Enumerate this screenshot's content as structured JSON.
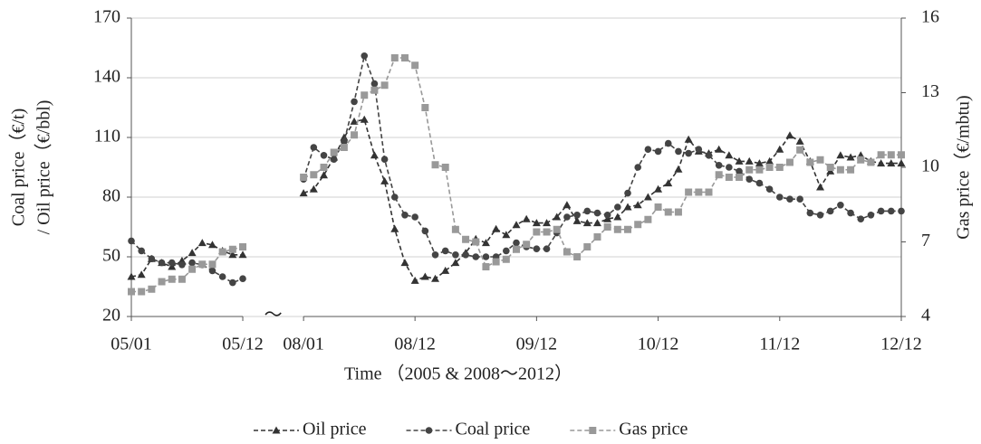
{
  "chart_data": {
    "type": "line",
    "y_label_lines": [
      "Coal price（€/t)",
      "/ Oil price（€/bbl)"
    ],
    "y2_label": "Gas price（€/mbtu)",
    "x_label": "Time （2005 & 2008～2012）",
    "break_label": "～",
    "categories": [
      "05/01",
      null,
      null,
      null,
      null,
      null,
      null,
      null,
      null,
      null,
      null,
      "05/12",
      null,
      null,
      null,
      null,
      null,
      "08/01",
      null,
      null,
      null,
      null,
      null,
      null,
      null,
      null,
      null,
      null,
      "08/12",
      null,
      null,
      null,
      null,
      null,
      null,
      null,
      null,
      null,
      null,
      null,
      "09/12",
      null,
      null,
      null,
      null,
      null,
      null,
      null,
      null,
      null,
      null,
      null,
      "10/12",
      null,
      null,
      null,
      null,
      null,
      null,
      null,
      null,
      null,
      null,
      null,
      "11/12",
      null,
      null,
      null,
      null,
      null,
      null,
      null,
      null,
      null,
      null,
      null,
      "12/12"
    ],
    "ylim": [
      20,
      170
    ],
    "yticks": [
      20,
      50,
      80,
      110,
      140,
      170
    ],
    "y2lim": [
      4,
      16
    ],
    "y2ticks": [
      4,
      7,
      10,
      13,
      16
    ],
    "grid": true,
    "series": [
      {
        "name": "Oil price",
        "color": "#333333",
        "marker": "triangle",
        "dash": true,
        "values": [
          40,
          41,
          49,
          47,
          45,
          48,
          52,
          57,
          56,
          53,
          51,
          51,
          null,
          null,
          null,
          null,
          null,
          82,
          84,
          91,
          100,
          110,
          118,
          119,
          101,
          88,
          64,
          47,
          38,
          40,
          39,
          43,
          47,
          52,
          59,
          57,
          64,
          61,
          66,
          69,
          67,
          67,
          70,
          76,
          68,
          67,
          67,
          69,
          70,
          75,
          76,
          80,
          84,
          87,
          94,
          109,
          103,
          102,
          104,
          101,
          98,
          98,
          97,
          98,
          104,
          111,
          108,
          98,
          85,
          93,
          101,
          100,
          101,
          98,
          97,
          97,
          97
        ]
      },
      {
        "name": "Coal price",
        "color": "#444444",
        "marker": "circle",
        "dash": true,
        "values": [
          58,
          53,
          49,
          47,
          47,
          46,
          47,
          46,
          43,
          40,
          37,
          39,
          null,
          null,
          null,
          null,
          null,
          89,
          105,
          101,
          99,
          108,
          128,
          151,
          137,
          99,
          80,
          71,
          70,
          63,
          51,
          53,
          51,
          51,
          50,
          50,
          50,
          53,
          57,
          55,
          54,
          54,
          62,
          70,
          71,
          73,
          72,
          71,
          75,
          82,
          95,
          104,
          103,
          107,
          103,
          102,
          104,
          101,
          96,
          95,
          93,
          89,
          87,
          84,
          80,
          79,
          79,
          72,
          71,
          73,
          76,
          72,
          69,
          71,
          73,
          73,
          73
        ]
      },
      {
        "name": "Gas price",
        "color": "#999999",
        "marker": "square",
        "dash": true,
        "axis": "y2",
        "values": [
          5.0,
          5.0,
          5.1,
          5.4,
          5.5,
          5.5,
          5.9,
          6.1,
          6.1,
          6.6,
          6.7,
          6.8,
          null,
          null,
          null,
          null,
          null,
          9.6,
          9.7,
          10.0,
          10.6,
          10.8,
          11.3,
          12.9,
          13.1,
          13.3,
          14.4,
          14.4,
          14.1,
          12.4,
          10.1,
          10.0,
          7.5,
          7.1,
          7.0,
          6.0,
          6.2,
          6.3,
          6.7,
          6.9,
          7.4,
          7.4,
          7.5,
          6.6,
          6.4,
          6.8,
          7.2,
          7.6,
          7.5,
          7.5,
          7.7,
          7.9,
          8.4,
          8.2,
          8.2,
          9.0,
          9.0,
          9.0,
          9.7,
          9.6,
          9.6,
          9.9,
          9.9,
          10.0,
          10.0,
          10.2,
          10.7,
          10.2,
          10.3,
          10.0,
          9.9,
          9.9,
          10.3,
          10.2,
          10.5,
          10.5,
          10.5
        ]
      }
    ]
  }
}
